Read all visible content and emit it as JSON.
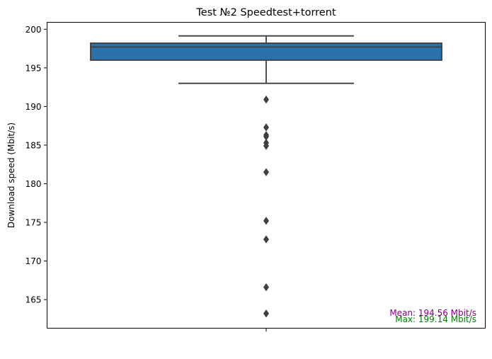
{
  "chart_data": {
    "type": "box",
    "title": "Test №2 Speedtest+torrent",
    "xlabel": "",
    "ylabel": "Download speed (Mbit/s)",
    "ylim": [
      161.3,
      200.9
    ],
    "yticks": [
      165,
      170,
      175,
      180,
      185,
      190,
      195,
      200
    ],
    "grid": false,
    "box": {
      "color": "#2b72aa",
      "edge_color": "#3f3f3f",
      "whisker_low": 193.0,
      "q1": 196.0,
      "median": 197.7,
      "q3": 198.2,
      "whisker_high": 199.14,
      "outliers": [
        190.9,
        187.3,
        186.3,
        186.1,
        185.3,
        184.9,
        181.5,
        175.2,
        172.8,
        166.6,
        163.2
      ]
    },
    "annotations": [
      {
        "text": "Mean: 194.56 Mbit/s",
        "color": "#800080"
      },
      {
        "text": "Max: 199.14 Mbit/s",
        "color": "#008000"
      }
    ]
  }
}
